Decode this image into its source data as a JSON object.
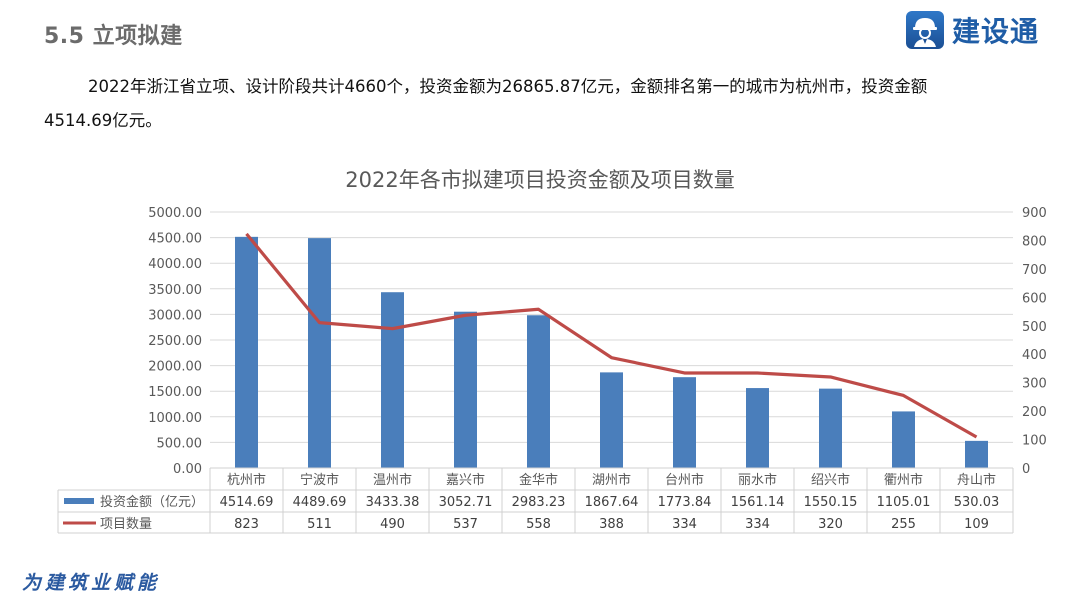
{
  "header": {
    "section_title": "5.5 立项拟建",
    "logo_text": "建设通"
  },
  "paragraph": {
    "line1": "2022年浙江省立项、设计阶段共计4660个，投资金额为26865.87亿元，金额排名第一的城市为杭州市，投资金额",
    "line2": "4514.69亿元。"
  },
  "footer": {
    "slogan": "为建筑业赋能"
  },
  "colors": {
    "bar": "#4a7ebb",
    "line": "#be4b48",
    "grid": "#d9d9d9",
    "axis_text": "#595959",
    "logo_blue": "#1f5da6"
  },
  "chart_data": {
    "type": "bar",
    "title": "2022年各市拟建项目投资金额及项目数量",
    "categories": [
      "杭州市",
      "宁波市",
      "温州市",
      "嘉兴市",
      "金华市",
      "湖州市",
      "台州市",
      "丽水市",
      "绍兴市",
      "衢州市",
      "舟山市"
    ],
    "series": [
      {
        "name": "投资金额（亿元）",
        "type": "bar",
        "axis": "left",
        "color": "#4a7ebb",
        "values": [
          4514.69,
          4489.69,
          3433.38,
          3052.71,
          2983.23,
          1867.64,
          1773.84,
          1561.14,
          1550.15,
          1105.01,
          530.03
        ],
        "labels": [
          "4514.69",
          "4489.69",
          "3433.38",
          "3052.71",
          "2983.23",
          "1867.64",
          "1773.84",
          "1561.14",
          "1550.15",
          "1105.01",
          "530.03"
        ]
      },
      {
        "name": "项目数量",
        "type": "line",
        "axis": "right",
        "color": "#be4b48",
        "values": [
          823,
          511,
          490,
          537,
          558,
          388,
          334,
          334,
          320,
          255,
          109
        ],
        "labels": [
          "823",
          "511",
          "490",
          "537",
          "558",
          "388",
          "334",
          "334",
          "320",
          "255",
          "109"
        ]
      }
    ],
    "y_left": {
      "min": 0,
      "max": 5000,
      "step": 500,
      "ticks": [
        "0.00",
        "500.00",
        "1000.00",
        "1500.00",
        "2000.00",
        "2500.00",
        "3000.00",
        "3500.00",
        "4000.00",
        "4500.00",
        "5000.00"
      ]
    },
    "y_right": {
      "min": 0,
      "max": 900,
      "step": 100,
      "ticks": [
        "0",
        "100",
        "200",
        "300",
        "400",
        "500",
        "600",
        "700",
        "800",
        "900"
      ]
    },
    "xlabel": "",
    "ylabel": "",
    "grid": true,
    "legend_position": "data-table-left"
  }
}
